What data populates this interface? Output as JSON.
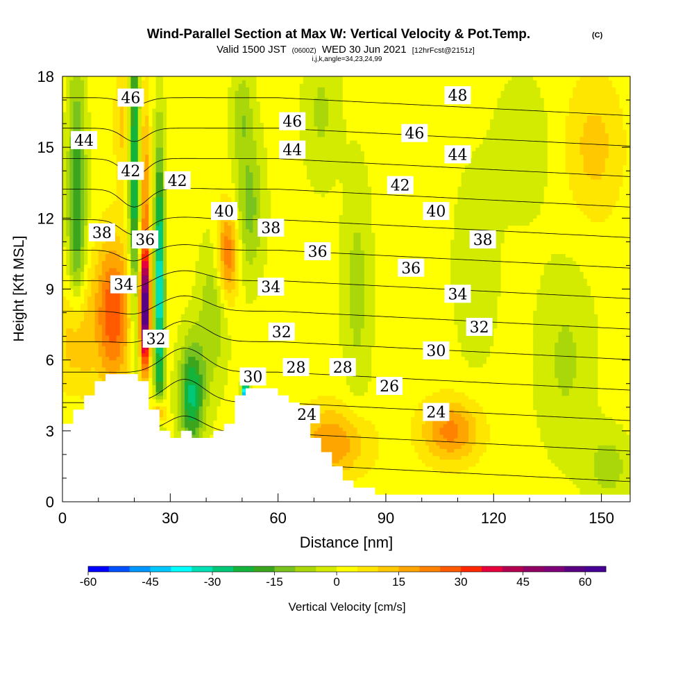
{
  "chart_data": {
    "type": "heatmap",
    "title": "Wind-Parallel Section at Max W: Vertical Velocity & Pot.Temp.",
    "title_tag": "(C)",
    "subtitle_prefix": "Valid 1500 JST",
    "subtitle_utc": "(0600Z)",
    "subtitle_date": "WED 30 Jun 2021",
    "subtitle_fcst": "[12hrFcst@2151z]",
    "subtitle2": "i,j,k,angle=34,23,24,99",
    "xlabel": "Distance [nm]",
    "ylabel": "Height [Kft MSL]",
    "xlim": [
      0,
      158
    ],
    "ylim": [
      0,
      18
    ],
    "x_ticks": [
      0,
      30,
      60,
      90,
      120,
      150
    ],
    "y_ticks": [
      0,
      3,
      6,
      9,
      12,
      15,
      18
    ],
    "colorbar": {
      "label": "Vertical Velocity [cm/s]",
      "range": [
        -60,
        65
      ],
      "step": 5,
      "ticks": [
        -60,
        -45,
        -30,
        -15,
        0,
        15,
        30,
        45,
        60
      ],
      "colors": [
        "#0000ff",
        "#0050ff",
        "#0096ff",
        "#00c8ff",
        "#00ffff",
        "#00e0b4",
        "#00c878",
        "#14b43c",
        "#3ca51e",
        "#78c31e",
        "#aad70a",
        "#d2eb00",
        "#ffff00",
        "#ffe600",
        "#ffc800",
        "#ffa500",
        "#ff8200",
        "#ff5a00",
        "#ff2800",
        "#e6003c",
        "#b40050",
        "#910064",
        "#7d0078",
        "#5a0082",
        "#460096"
      ]
    },
    "theta_contour_labels": [
      {
        "x": 19,
        "y": 17.1,
        "label": "46"
      },
      {
        "x": 64,
        "y": 16.1,
        "label": "46"
      },
      {
        "x": 98,
        "y": 15.6,
        "label": "46"
      },
      {
        "x": 110,
        "y": 17.2,
        "label": "48"
      },
      {
        "x": 6,
        "y": 15.3,
        "label": "44"
      },
      {
        "x": 64,
        "y": 14.9,
        "label": "44"
      },
      {
        "x": 110,
        "y": 14.7,
        "label": "44"
      },
      {
        "x": 19,
        "y": 14.0,
        "label": "42"
      },
      {
        "x": 32,
        "y": 13.6,
        "label": "42"
      },
      {
        "x": 94,
        "y": 13.4,
        "label": "42"
      },
      {
        "x": 45,
        "y": 12.3,
        "label": "40"
      },
      {
        "x": 104,
        "y": 12.3,
        "label": "40"
      },
      {
        "x": 11,
        "y": 11.4,
        "label": "38"
      },
      {
        "x": 58,
        "y": 11.6,
        "label": "38"
      },
      {
        "x": 117,
        "y": 11.1,
        "label": "38"
      },
      {
        "x": 23,
        "y": 11.1,
        "label": "36"
      },
      {
        "x": 71,
        "y": 10.6,
        "label": "36"
      },
      {
        "x": 97,
        "y": 9.9,
        "label": "36"
      },
      {
        "x": 17,
        "y": 9.2,
        "label": "34"
      },
      {
        "x": 58,
        "y": 9.1,
        "label": "34"
      },
      {
        "x": 110,
        "y": 8.8,
        "label": "34"
      },
      {
        "x": 26,
        "y": 6.9,
        "label": "32"
      },
      {
        "x": 61,
        "y": 7.2,
        "label": "32"
      },
      {
        "x": 116,
        "y": 7.4,
        "label": "32"
      },
      {
        "x": 53,
        "y": 5.3,
        "label": "30"
      },
      {
        "x": 104,
        "y": 6.4,
        "label": "30"
      },
      {
        "x": 65,
        "y": 5.7,
        "label": "28"
      },
      {
        "x": 78,
        "y": 5.7,
        "label": "28"
      },
      {
        "x": 91,
        "y": 4.9,
        "label": "26"
      },
      {
        "x": 68,
        "y": 3.7,
        "label": "24"
      },
      {
        "x": 104,
        "y": 3.8,
        "label": "24"
      }
    ],
    "theta_contour_values": [
      22,
      24,
      26,
      28,
      30,
      32,
      34,
      36,
      38,
      40,
      42,
      44,
      46,
      48
    ],
    "terrain_height_kft": [
      {
        "x": 0,
        "y": 3.3
      },
      {
        "x": 3,
        "y": 3.9
      },
      {
        "x": 6,
        "y": 4.4
      },
      {
        "x": 8,
        "y": 5.0
      },
      {
        "x": 10,
        "y": 5.3
      },
      {
        "x": 13,
        "y": 5.6
      },
      {
        "x": 20,
        "y": 5.3
      },
      {
        "x": 23,
        "y": 4.4
      },
      {
        "x": 26,
        "y": 3.3
      },
      {
        "x": 29,
        "y": 2.7
      },
      {
        "x": 32,
        "y": 3.0
      },
      {
        "x": 39,
        "y": 2.7
      },
      {
        "x": 45,
        "y": 3.3
      },
      {
        "x": 48,
        "y": 4.4
      },
      {
        "x": 52,
        "y": 5.0
      },
      {
        "x": 58,
        "y": 4.7
      },
      {
        "x": 61,
        "y": 4.4
      },
      {
        "x": 64,
        "y": 3.9
      },
      {
        "x": 68,
        "y": 3.0
      },
      {
        "x": 71,
        "y": 2.2
      },
      {
        "x": 74,
        "y": 1.6
      },
      {
        "x": 78,
        "y": 0.9
      },
      {
        "x": 84,
        "y": 0.5
      },
      {
        "x": 90,
        "y": 0.3
      },
      {
        "x": 158,
        "y": 0.3
      }
    ],
    "vertical_velocity_features": [
      {
        "x": 4,
        "z": 12.5,
        "w": -22,
        "sx": 2.5,
        "sz": 6
      },
      {
        "x": 4,
        "z": 7,
        "w": 18,
        "sx": 4,
        "sz": 2.5
      },
      {
        "x": 14,
        "z": 8,
        "w": 28,
        "sx": 5,
        "sz": 3
      },
      {
        "x": 17,
        "z": 16,
        "w": 10,
        "sx": 2.5,
        "sz": 2.5
      },
      {
        "x": 20,
        "z": 14.5,
        "w": -30,
        "sx": 1.5,
        "sz": 7
      },
      {
        "x": 23,
        "z": 8,
        "w": 55,
        "sx": 1.3,
        "sz": 2.2
      },
      {
        "x": 23,
        "z": 12,
        "w": 20,
        "sx": 1.4,
        "sz": 5
      },
      {
        "x": 27,
        "z": 9,
        "w": -38,
        "sx": 1.4,
        "sz": 6
      },
      {
        "x": 27,
        "z": 3.8,
        "w": 30,
        "sx": 1.5,
        "sz": 0.6
      },
      {
        "x": 36,
        "z": 4.5,
        "w": -28,
        "sx": 3.5,
        "sz": 2.3
      },
      {
        "x": 42,
        "z": 8,
        "w": -12,
        "sx": 4,
        "sz": 3
      },
      {
        "x": 46,
        "z": 10.5,
        "w": 24,
        "sx": 3,
        "sz": 2
      },
      {
        "x": 51,
        "z": 4.6,
        "w": -55,
        "sx": 1,
        "sz": 0.5
      },
      {
        "x": 52,
        "z": 12.5,
        "w": -14,
        "sx": 4,
        "sz": 3
      },
      {
        "x": 50,
        "z": 16.5,
        "w": -10,
        "sx": 3,
        "sz": 2
      },
      {
        "x": 72,
        "z": 16.5,
        "w": -8,
        "sx": 5,
        "sz": 3
      },
      {
        "x": 75,
        "z": 2.5,
        "w": 18,
        "sx": 10,
        "sz": 1.5
      },
      {
        "x": 82,
        "z": 9,
        "w": -9,
        "sx": 4,
        "sz": 5
      },
      {
        "x": 108,
        "z": 3,
        "w": 20,
        "sx": 8,
        "sz": 1.3
      },
      {
        "x": 115,
        "z": 10,
        "w": -7,
        "sx": 6,
        "sz": 4
      },
      {
        "x": 128,
        "z": 15,
        "w": -6,
        "sx": 8,
        "sz": 3
      },
      {
        "x": 140,
        "z": 6,
        "w": -8,
        "sx": 8,
        "sz": 4
      },
      {
        "x": 152,
        "z": 1.5,
        "w": -10,
        "sx": 6,
        "sz": 1.5
      },
      {
        "x": 148,
        "z": 15,
        "w": 10,
        "sx": 8,
        "sz": 3
      }
    ]
  }
}
